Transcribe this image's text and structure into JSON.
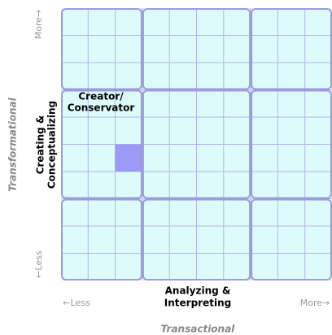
{
  "y_axis": {
    "more": "More→",
    "less": "←Less",
    "dimension": "Transformational",
    "label": [
      "Creating &",
      "Conceptualizing"
    ]
  },
  "x_axis": {
    "less": "←Less",
    "more": "More→",
    "dimension": "Transactional",
    "label": [
      "Analyzing &",
      "Interpreting"
    ]
  },
  "cell_label": [
    "Creator/",
    "Conservator"
  ]
}
